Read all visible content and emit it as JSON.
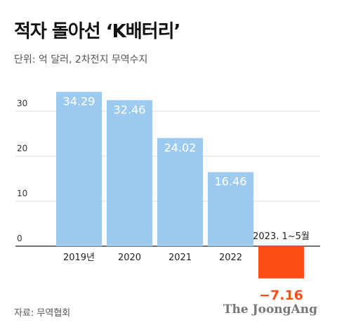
{
  "title": "적자 돌아선 ‘K배터리’",
  "subtitle": "단위: 억 달러, 2차전지 무역수지",
  "source": "자료: 무역협회",
  "brand": "The JoongAng",
  "colors": {
    "positive_bar": "#9ccbef",
    "positive_label": "#ffffff",
    "negative_bar": "#ff4d17",
    "negative_label": "#ff4d17",
    "gridline": "#d9d9d9",
    "axis": "#222222"
  },
  "chart_data": {
    "type": "bar",
    "categories": [
      "2019년",
      "2020",
      "2021",
      "2022",
      "2023. 1~5월"
    ],
    "values": [
      34.29,
      32.46,
      24.02,
      16.46,
      -7.16
    ],
    "value_labels": [
      "34.29",
      "32.46",
      "24.02",
      "16.46",
      "−7.16"
    ],
    "yticks": [
      0,
      10,
      20,
      30
    ],
    "ylim": [
      -8.5,
      36
    ],
    "grid": true,
    "legend": "none"
  }
}
